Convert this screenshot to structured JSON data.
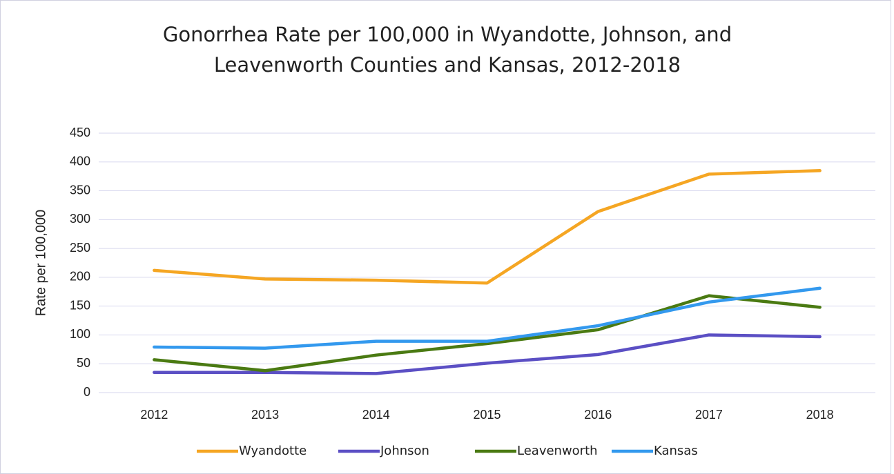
{
  "chart_data": {
    "type": "line",
    "title": [
      "Gonorrhea Rate per 100,000 in Wyandotte, Johnson, and",
      "Leavenworth Counties and Kansas, 2012-2018"
    ],
    "y_label": "Rate per 100,000",
    "categories": [
      "2012",
      "2013",
      "2014",
      "2015",
      "2016",
      "2017",
      "2018"
    ],
    "series": [
      {
        "name": "Wyandotte",
        "color": "#f5a623",
        "values": [
          212,
          197,
          195,
          190,
          314,
          379,
          385
        ]
      },
      {
        "name": "Johnson",
        "color": "#5b4fc4",
        "values": [
          35,
          35,
          33,
          51,
          66,
          100,
          97
        ]
      },
      {
        "name": "Leavenworth",
        "color": "#4a7a12",
        "values": [
          57,
          38,
          65,
          85,
          109,
          168,
          148
        ]
      },
      {
        "name": "Kansas",
        "color": "#3399ee",
        "values": [
          79,
          77,
          89,
          89,
          116,
          157,
          181
        ]
      }
    ],
    "ylim": [
      0,
      450
    ],
    "yticks": [
      0,
      50,
      100,
      150,
      200,
      250,
      300,
      350,
      400,
      450
    ],
    "grid": true,
    "legend": "bottom"
  }
}
